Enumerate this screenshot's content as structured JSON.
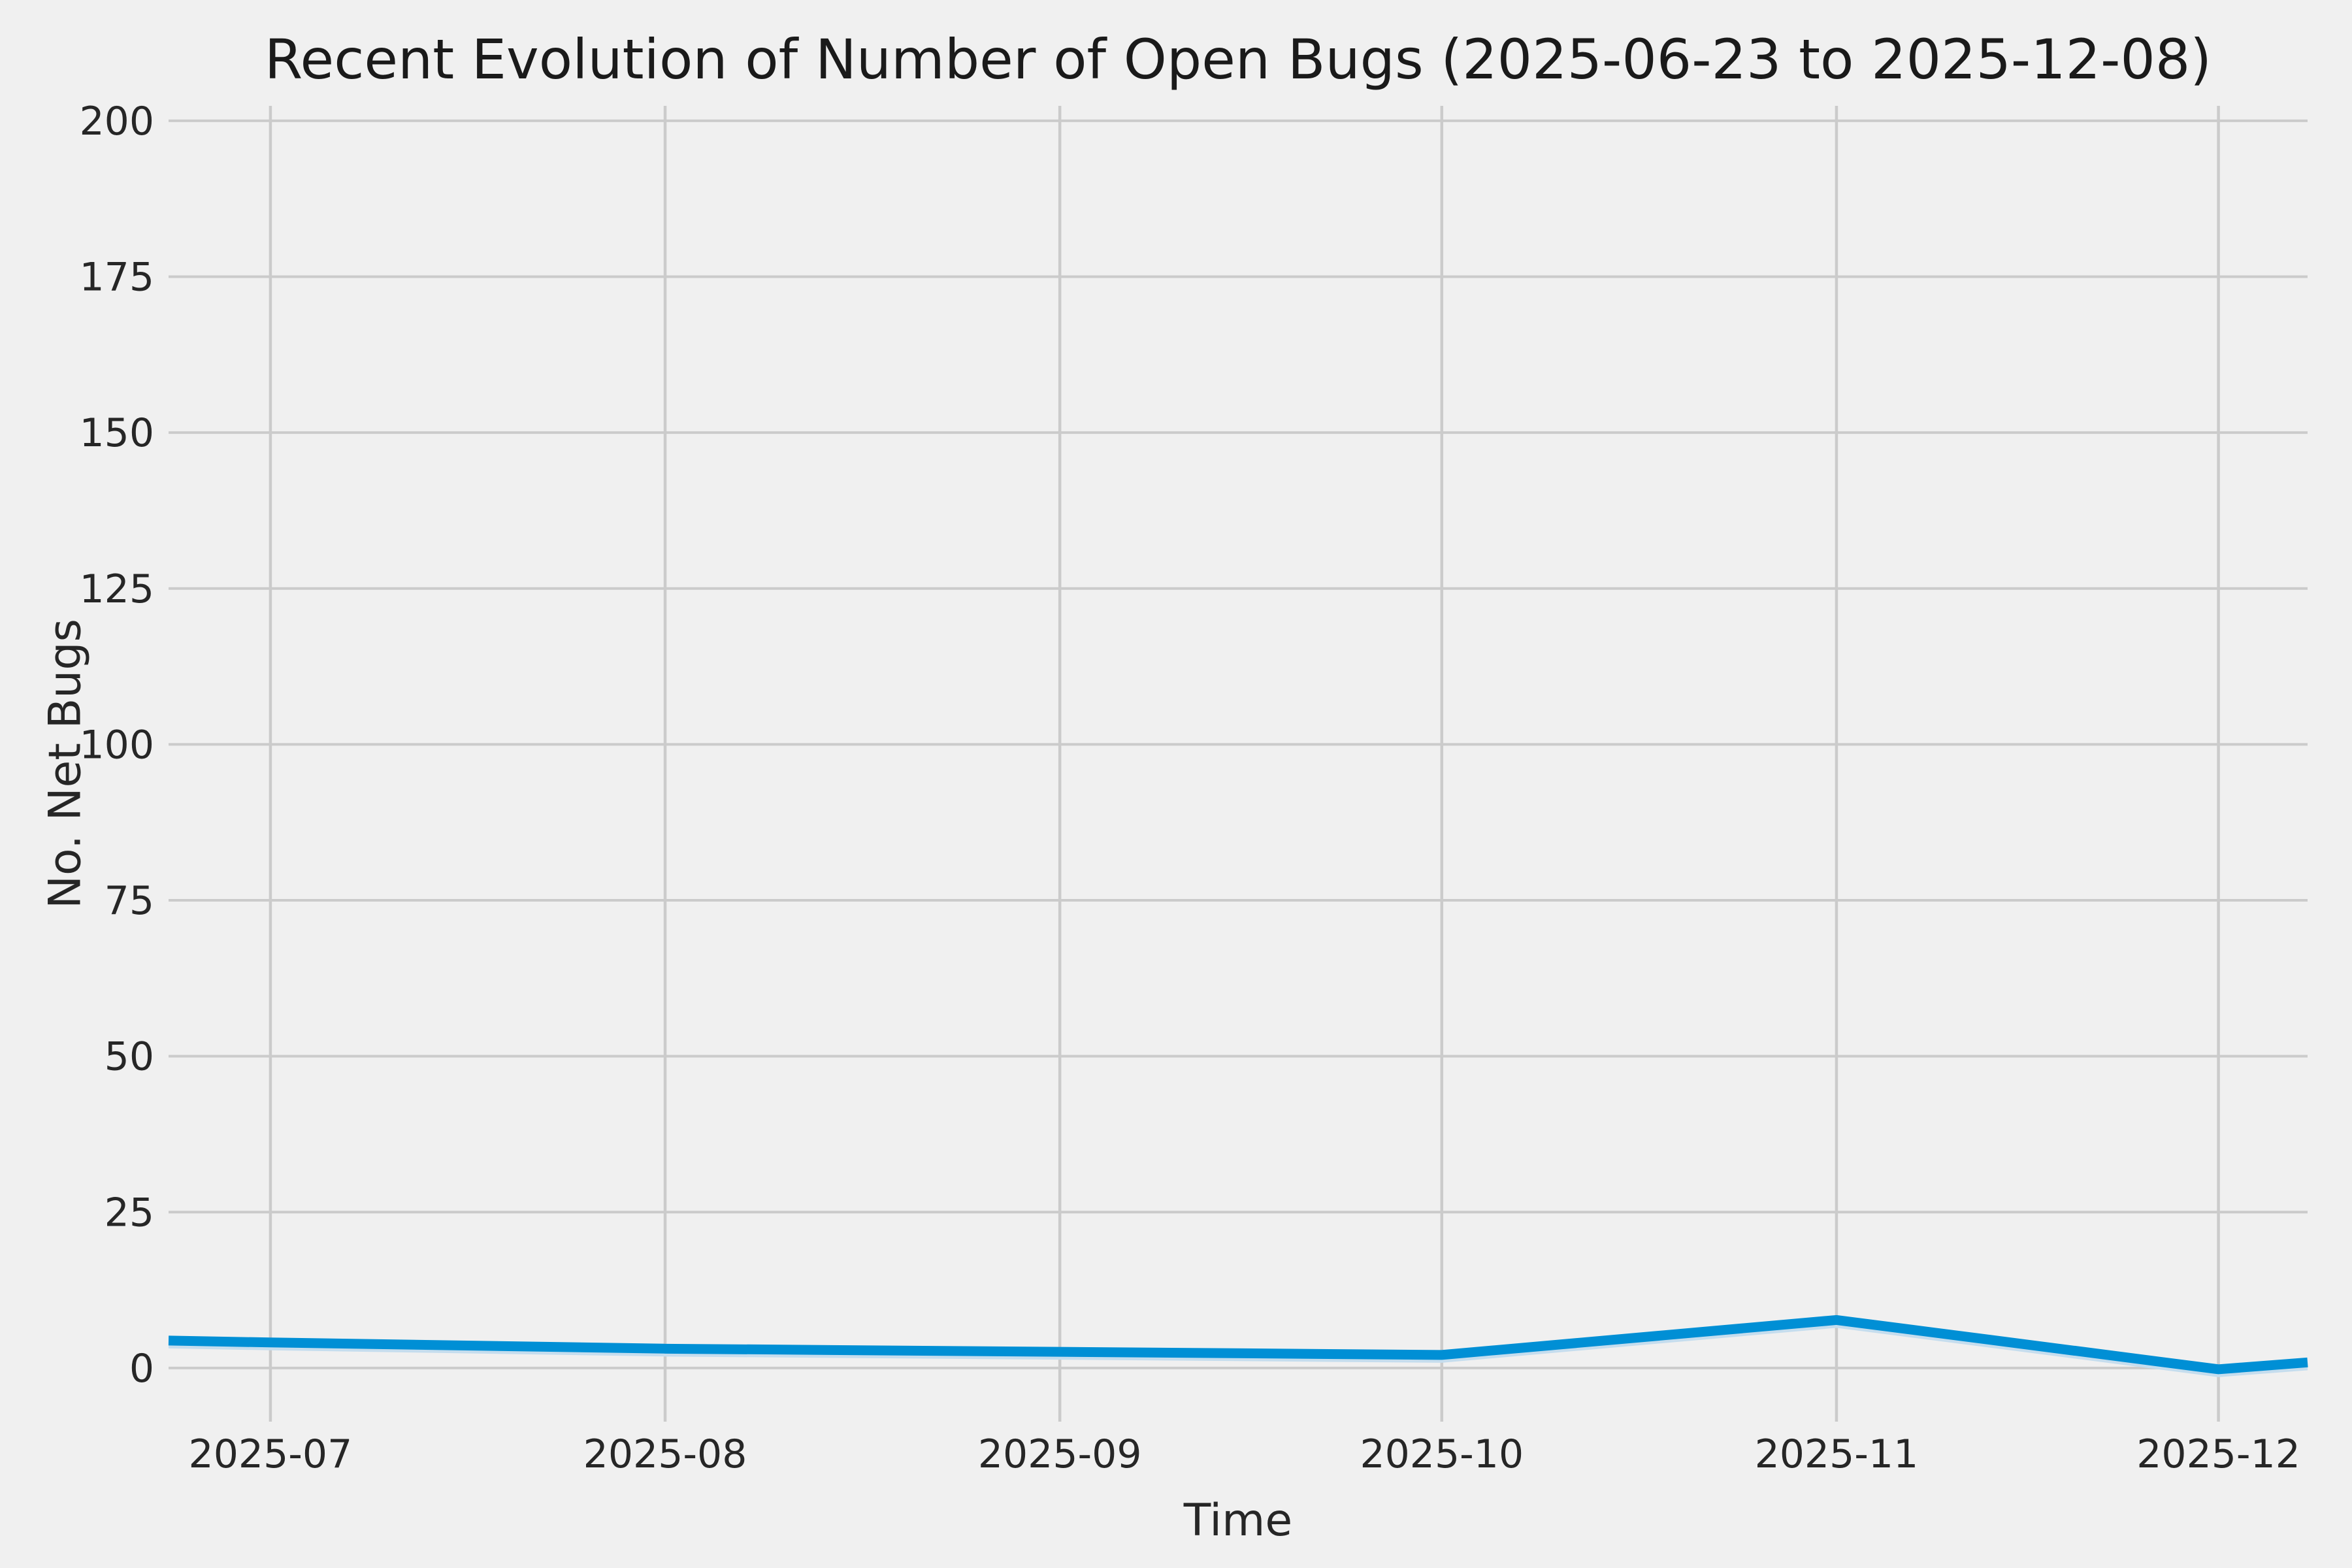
{
  "figure": {
    "background_color": "#f0f0f0"
  },
  "chart_data": {
    "type": "line",
    "title": "Recent Evolution of Number of Open Bugs (2025-06-23 to 2025-12-08)",
    "xlabel": "Time",
    "ylabel": "No. Net Bugs",
    "legend": "none",
    "grid": true,
    "background_color": "#f0f0f0",
    "grid_color": "#cbcbcb",
    "tick_text_color": "#262626",
    "line_color": "#008fd5",
    "underlay_line_color": "#c5ddee",
    "x_domain": {
      "start_date": "2025-06-23",
      "end_date": "2025-12-08",
      "total_days": 168
    },
    "ylim": [
      -8.6,
      202.4
    ],
    "y_ticks": [
      0,
      25,
      50,
      75,
      100,
      125,
      150,
      175,
      200
    ],
    "x_ticks": [
      {
        "label": "2025-07",
        "day": 8
      },
      {
        "label": "2025-08",
        "day": 39
      },
      {
        "label": "2025-09",
        "day": 70
      },
      {
        "label": "2025-10",
        "day": 100
      },
      {
        "label": "2025-11",
        "day": 131
      },
      {
        "label": "2025-12",
        "day": 161
      }
    ],
    "series": [
      {
        "name": "open-bugs",
        "points": [
          {
            "date": "2025-06-23",
            "day": 0,
            "value": 4.4
          },
          {
            "date": "2025-07-01",
            "day": 8,
            "value": 4.1
          },
          {
            "date": "2025-08-01",
            "day": 39,
            "value": 3.1
          },
          {
            "date": "2025-09-01",
            "day": 70,
            "value": 2.6
          },
          {
            "date": "2025-10-01",
            "day": 100,
            "value": 2.1
          },
          {
            "date": "2025-11-01",
            "day": 131,
            "value": 7.7
          },
          {
            "date": "2025-12-01",
            "day": 161,
            "value": -0.2
          },
          {
            "date": "2025-12-08",
            "day": 168,
            "value": 0.9
          }
        ]
      }
    ]
  }
}
